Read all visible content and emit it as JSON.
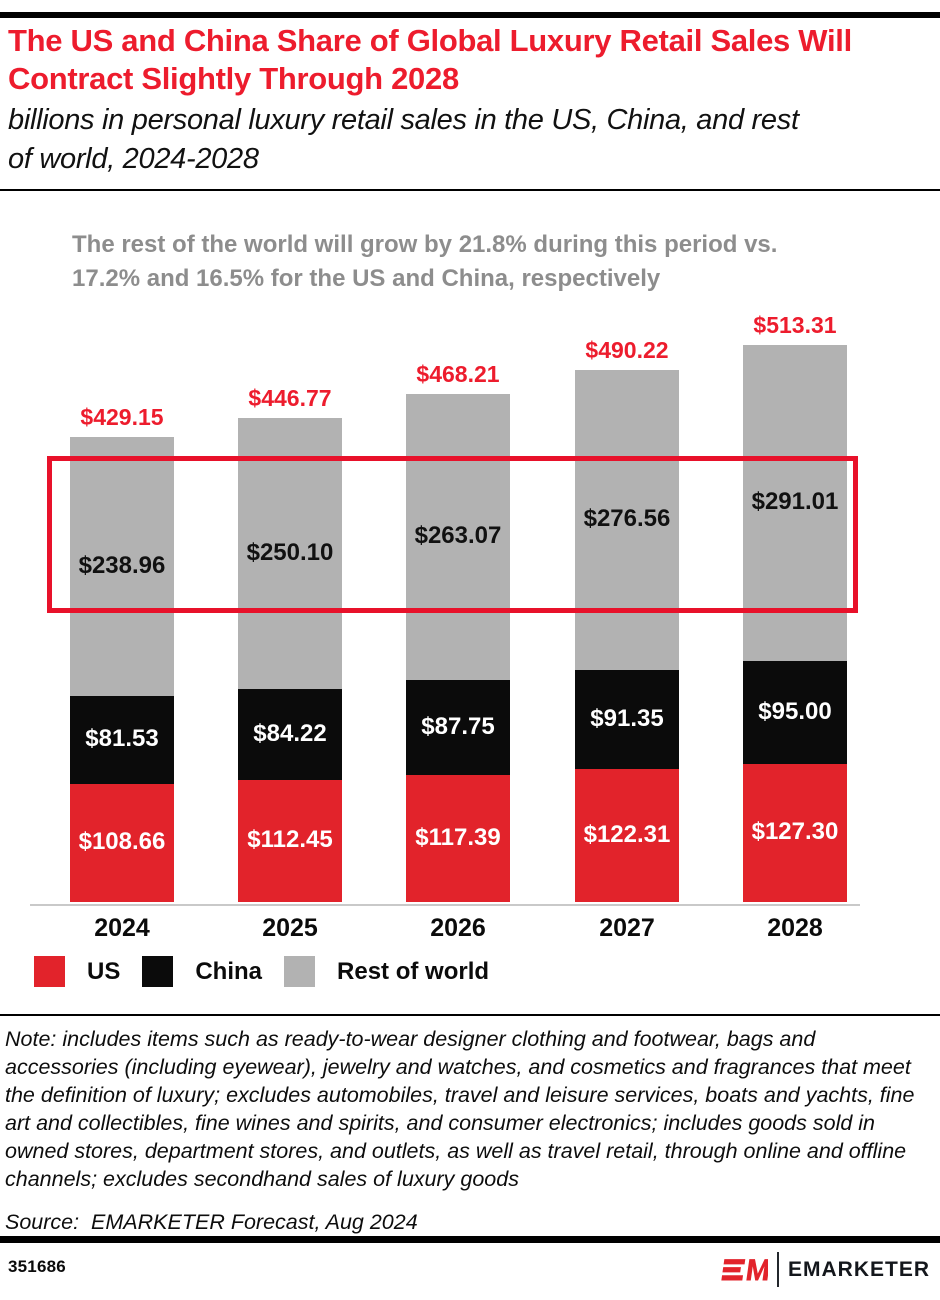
{
  "header": {
    "title": "The US and China Share of Global Luxury Retail Sales Will Contract Slightly Through 2028",
    "subtitle": "billions in personal luxury retail sales in the US, China, and rest of world, 2024-2028",
    "title_color": "#ed1c2d"
  },
  "annotation": {
    "text": "The rest of the world will grow by 21.8% during this period vs. 17.2% and 16.5% for the US and China, respectively",
    "color": "#8d8d8d"
  },
  "chart_data": {
    "type": "bar",
    "stacked": true,
    "title": "The US and China Share of Global Luxury Retail Sales Will Contract Slightly Through 2028",
    "subtitle": "billions in personal luxury retail sales in the US, China, and rest of world, 2024-2028",
    "categories": [
      "2024",
      "2025",
      "2026",
      "2027",
      "2028"
    ],
    "series": [
      {
        "name": "US",
        "color": "#e2232b",
        "label_color": "#ffffff",
        "values": [
          108.66,
          112.45,
          117.39,
          122.31,
          127.3
        ],
        "labels": [
          "$108.66",
          "$112.45",
          "$117.39",
          "$122.31",
          "$127.30"
        ]
      },
      {
        "name": "China",
        "color": "#0b0b0b",
        "label_color": "#ffffff",
        "values": [
          81.53,
          84.22,
          87.75,
          91.35,
          95.0
        ],
        "labels": [
          "$81.53",
          "$84.22",
          "$87.75",
          "$91.35",
          "$95.00"
        ]
      },
      {
        "name": "Rest of world",
        "color": "#b2b2b2",
        "label_color": "#111111",
        "values": [
          238.96,
          250.1,
          263.07,
          276.56,
          291.01
        ],
        "labels": [
          "$238.96",
          "$250.10",
          "$263.07",
          "$276.56",
          "$291.01"
        ]
      }
    ],
    "totals": [
      429.15,
      446.77,
      468.21,
      490.22,
      513.31
    ],
    "total_labels": [
      "$429.15",
      "$446.77",
      "$468.21",
      "$490.22",
      "$513.31"
    ],
    "total_label_color": "#ed1c2d",
    "ylim": [
      0,
      530
    ],
    "grid": false,
    "legend_position": "bottom",
    "highlight_box_color": "#e8112a",
    "axis_line_color": "#c9c9c9"
  },
  "legend": {
    "items": [
      {
        "label": "US",
        "color": "#e2232b"
      },
      {
        "label": "China",
        "color": "#0b0b0b"
      },
      {
        "label": "Rest of world",
        "color": "#b2b2b2"
      }
    ]
  },
  "note": "Note: includes items such as ready-to-wear designer clothing and footwear, bags and accessories (including eyewear), jewelry and watches, and cosmetics and fragrances that meet the definition of luxury; excludes automobiles, travel and leisure services, boats and yachts, fine art and collectibles, fine wines and spirits, and consumer electronics; includes goods sold in owned stores, department stores, and outlets, as well as travel retail, through online and offline channels; excludes secondhand sales of luxury goods",
  "source": "Source:  EMARKETER Forecast, Aug 2024",
  "footer": {
    "chart_id": "351686",
    "wordmark": "EMARKETER",
    "brand_red": "#e2232b"
  }
}
